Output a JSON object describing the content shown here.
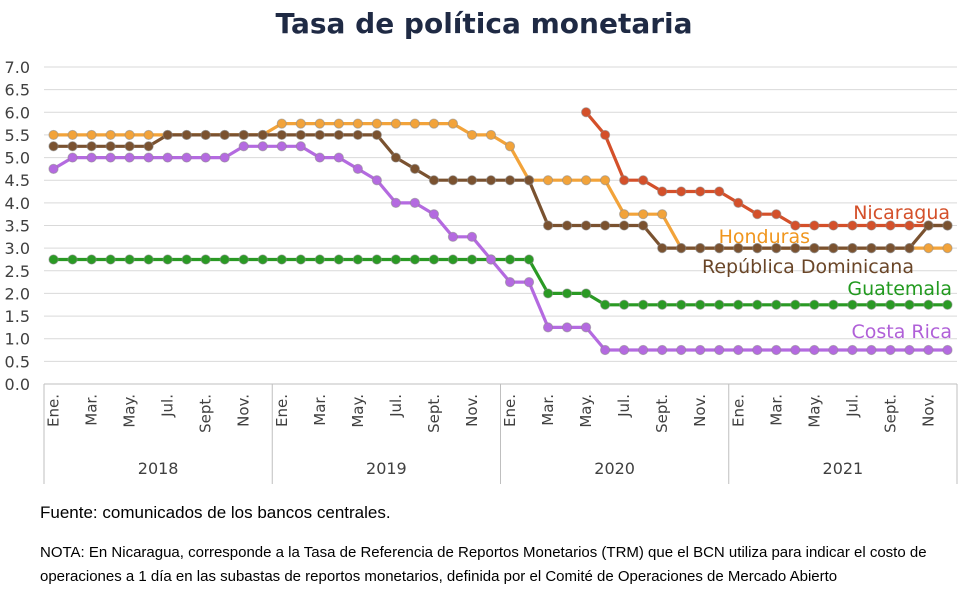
{
  "chart_data": {
    "type": "line",
    "title": "Tasa de política monetaria",
    "ylim": [
      0,
      7
    ],
    "y_ticks": [
      "0.0",
      "0.5",
      "1.0",
      "1.5",
      "2.0",
      "2.5",
      "3.0",
      "3.5",
      "4.0",
      "4.5",
      "5.0",
      "5.5",
      "6.0",
      "6.5",
      "7.0"
    ],
    "grid": true,
    "legend": "inline labels",
    "x_month_labels": [
      "Ene.",
      "Mar.",
      "May.",
      "Jul.",
      "Sept.",
      "Nov.",
      "Ene.",
      "Mar.",
      "May.",
      "Jul.",
      "Sept.",
      "Nov.",
      "Ene.",
      "Mar.",
      "May.",
      "Jul.",
      "Sept.",
      "Nov.",
      "Ene.",
      "Mar.",
      "May.",
      "Jul.",
      "Sept.",
      "Nov."
    ],
    "years": [
      "2018",
      "2019",
      "2020",
      "2021"
    ],
    "series": [
      {
        "name": "Nicaragua",
        "color": "#d4502a",
        "label_color": "#d4502a",
        "values": [
          null,
          null,
          null,
          null,
          null,
          null,
          null,
          null,
          null,
          null,
          null,
          null,
          null,
          null,
          null,
          null,
          null,
          null,
          null,
          null,
          null,
          null,
          null,
          null,
          null,
          null,
          null,
          null,
          6.0,
          5.5,
          4.5,
          4.5,
          4.25,
          4.25,
          4.25,
          4.25,
          4.0,
          3.75,
          3.75,
          3.5,
          3.5,
          3.5,
          3.5,
          3.5,
          3.5,
          3.5,
          3.5,
          3.5
        ]
      },
      {
        "name": "Honduras",
        "color": "#f2a33a",
        "label_color": "#f0961e",
        "values": [
          5.5,
          5.5,
          5.5,
          5.5,
          5.5,
          5.5,
          5.5,
          5.5,
          5.5,
          5.5,
          5.5,
          5.5,
          5.75,
          5.75,
          5.75,
          5.75,
          5.75,
          5.75,
          5.75,
          5.75,
          5.75,
          5.75,
          5.5,
          5.5,
          5.25,
          4.5,
          4.5,
          4.5,
          4.5,
          4.5,
          3.75,
          3.75,
          3.75,
          3.0,
          3.0,
          3.0,
          3.0,
          3.0,
          3.0,
          3.0,
          3.0,
          3.0,
          3.0,
          3.0,
          3.0,
          3.0,
          3.0,
          3.0
        ]
      },
      {
        "name": "República Dominicana",
        "color": "#7a5230",
        "label_color": "#6a4628",
        "values": [
          5.25,
          5.25,
          5.25,
          5.25,
          5.25,
          5.25,
          5.5,
          5.5,
          5.5,
          5.5,
          5.5,
          5.5,
          5.5,
          5.5,
          5.5,
          5.5,
          5.5,
          5.5,
          5.0,
          4.75,
          4.5,
          4.5,
          4.5,
          4.5,
          4.5,
          4.5,
          3.5,
          3.5,
          3.5,
          3.5,
          3.5,
          3.5,
          3.0,
          3.0,
          3.0,
          3.0,
          3.0,
          3.0,
          3.0,
          3.0,
          3.0,
          3.0,
          3.0,
          3.0,
          3.0,
          3.0,
          3.5,
          3.5
        ]
      },
      {
        "name": "Guatemala",
        "color": "#2a9a24",
        "label_color": "#229a1f",
        "values": [
          2.75,
          2.75,
          2.75,
          2.75,
          2.75,
          2.75,
          2.75,
          2.75,
          2.75,
          2.75,
          2.75,
          2.75,
          2.75,
          2.75,
          2.75,
          2.75,
          2.75,
          2.75,
          2.75,
          2.75,
          2.75,
          2.75,
          2.75,
          2.75,
          2.75,
          2.75,
          2.0,
          2.0,
          2.0,
          1.75,
          1.75,
          1.75,
          1.75,
          1.75,
          1.75,
          1.75,
          1.75,
          1.75,
          1.75,
          1.75,
          1.75,
          1.75,
          1.75,
          1.75,
          1.75,
          1.75,
          1.75,
          1.75
        ]
      },
      {
        "name": "Costa Rica",
        "color": "#b46ae0",
        "label_color": "#b060d8",
        "values": [
          4.75,
          5.0,
          5.0,
          5.0,
          5.0,
          5.0,
          5.0,
          5.0,
          5.0,
          5.0,
          5.25,
          5.25,
          5.25,
          5.25,
          5.0,
          5.0,
          4.75,
          4.5,
          4.0,
          4.0,
          3.75,
          3.25,
          3.25,
          2.75,
          2.25,
          2.25,
          1.25,
          1.25,
          1.25,
          0.75,
          0.75,
          0.75,
          0.75,
          0.75,
          0.75,
          0.75,
          0.75,
          0.75,
          0.75,
          0.75,
          0.75,
          0.75,
          0.75,
          0.75,
          0.75,
          0.75,
          0.75,
          0.75
        ]
      }
    ]
  },
  "source_text": "Fuente: comunicados de los bancos centrales.",
  "note_text": "NOTA: En Nicaragua, corresponde a la Tasa de Referencia de Reportos Monetarios (TRM) que el BCN utiliza para indicar el costo de operaciones a 1 día en las subastas de reportos monetarios, definida por el Comité de Operaciones de Mercado Abierto"
}
